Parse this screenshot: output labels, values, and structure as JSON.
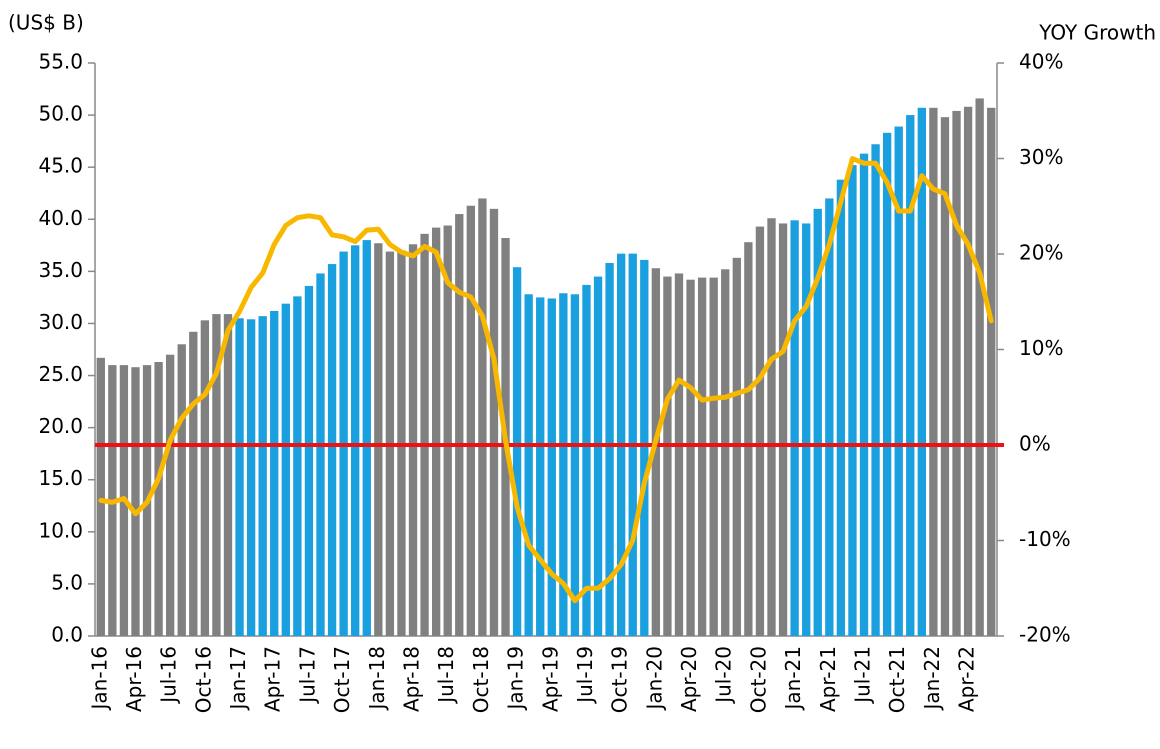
{
  "chart_data": {
    "type": "bar",
    "y_label": "(US$ B)",
    "y2_label": "YOY Growth",
    "categories": [
      "Jan-16",
      null,
      null,
      "Apr-16",
      null,
      null,
      "Jul-16",
      null,
      null,
      "Oct-16",
      null,
      null,
      "Jan-17",
      null,
      null,
      "Apr-17",
      null,
      null,
      "Jul-17",
      null,
      null,
      "Oct-17",
      null,
      null,
      "Jan-18",
      null,
      null,
      "Apr-18",
      null,
      null,
      "Jul-18",
      null,
      null,
      "Oct-18",
      null,
      null,
      "Jan-19",
      null,
      null,
      "Apr-19",
      null,
      null,
      "Jul-19",
      null,
      null,
      "Oct-19",
      null,
      null,
      "Jan-20",
      null,
      null,
      "Apr-20",
      null,
      null,
      "Jul-20",
      null,
      null,
      "Oct-20",
      null,
      null,
      "Jan-21",
      null,
      null,
      "Apr-21",
      null,
      null,
      "Jul-21",
      null,
      null,
      "Oct-21",
      null,
      null,
      "Jan-22",
      null,
      null,
      "Apr-22",
      null,
      null
    ],
    "series": [
      {
        "type": "bar",
        "colors": [
          "#808080",
          "#808080",
          "#808080",
          "#808080",
          "#808080",
          "#808080",
          "#808080",
          "#808080",
          "#808080",
          "#808080",
          "#808080",
          "#808080",
          "#1a9fdf",
          "#1a9fdf",
          "#1a9fdf",
          "#1a9fdf",
          "#1a9fdf",
          "#1a9fdf",
          "#1a9fdf",
          "#1a9fdf",
          "#1a9fdf",
          "#1a9fdf",
          "#1a9fdf",
          "#1a9fdf",
          "#808080",
          "#808080",
          "#808080",
          "#808080",
          "#808080",
          "#808080",
          "#808080",
          "#808080",
          "#808080",
          "#808080",
          "#808080",
          "#808080",
          "#1a9fdf",
          "#1a9fdf",
          "#1a9fdf",
          "#1a9fdf",
          "#1a9fdf",
          "#1a9fdf",
          "#1a9fdf",
          "#1a9fdf",
          "#1a9fdf",
          "#1a9fdf",
          "#1a9fdf",
          "#1a9fdf",
          "#808080",
          "#808080",
          "#808080",
          "#808080",
          "#808080",
          "#808080",
          "#808080",
          "#808080",
          "#808080",
          "#808080",
          "#808080",
          "#808080",
          "#1a9fdf",
          "#1a9fdf",
          "#1a9fdf",
          "#1a9fdf",
          "#1a9fdf",
          "#1a9fdf",
          "#1a9fdf",
          "#1a9fdf",
          "#1a9fdf",
          "#1a9fdf",
          "#1a9fdf",
          "#1a9fdf",
          "#808080",
          "#808080",
          "#808080",
          "#808080",
          "#808080",
          "#808080"
        ],
        "values": [
          26.7,
          26.0,
          26.0,
          25.8,
          26.0,
          26.3,
          27.0,
          28.0,
          29.2,
          30.3,
          30.9,
          30.9,
          30.5,
          30.4,
          30.7,
          31.2,
          31.9,
          32.6,
          33.6,
          34.8,
          35.7,
          36.9,
          37.5,
          38.0,
          37.7,
          36.9,
          37.0,
          37.6,
          38.6,
          39.2,
          39.4,
          40.5,
          41.3,
          42.0,
          41.0,
          38.2,
          35.4,
          32.8,
          32.5,
          32.4,
          32.9,
          32.8,
          33.7,
          34.5,
          35.8,
          36.7,
          36.7,
          36.1,
          35.3,
          34.5,
          34.8,
          34.2,
          34.4,
          34.4,
          35.2,
          36.3,
          37.8,
          39.3,
          40.1,
          39.6,
          39.9,
          39.6,
          41.0,
          42.0,
          43.8,
          45.2,
          46.3,
          47.2,
          48.3,
          48.9,
          50.0,
          50.7,
          50.7,
          49.8,
          50.4,
          50.8,
          51.6,
          50.7
        ]
      },
      {
        "type": "line",
        "axis": "y2",
        "color": "#f9b800",
        "values": [
          -5.8,
          -6.0,
          -5.6,
          -7.2,
          -6.0,
          -3.5,
          0.5,
          2.8,
          4.3,
          5.3,
          7.5,
          12.0,
          14.0,
          16.5,
          18.0,
          21.0,
          23.0,
          23.8,
          24.0,
          23.8,
          22.0,
          21.8,
          21.3,
          22.5,
          22.6,
          21.0,
          20.2,
          19.8,
          20.8,
          20.2,
          17.0,
          16.0,
          15.5,
          13.5,
          9.0,
          0.5,
          -6.5,
          -10.5,
          -12.0,
          -13.5,
          -14.5,
          -16.3,
          -15.0,
          -15.0,
          -14.0,
          -12.5,
          -10.0,
          -4.0,
          0.5,
          4.8,
          6.8,
          6.0,
          4.7,
          4.9,
          5.0,
          5.4,
          5.8,
          7.0,
          9.0,
          9.8,
          13.0,
          14.5,
          17.5,
          21.0,
          25.5,
          30.0,
          29.5,
          29.5,
          27.5,
          24.5,
          24.5,
          28.2,
          26.8,
          26.3,
          23.0,
          21.0,
          18.0,
          13.0
        ]
      }
    ],
    "reference_line": {
      "axis": "y2",
      "value": 0,
      "color": "#ee1111"
    },
    "ylim": [
      0,
      55
    ],
    "yticks": [
      {
        "value": 0,
        "label": "0.0"
      },
      {
        "value": 5,
        "label": "5.0"
      },
      {
        "value": 10,
        "label": "10.0"
      },
      {
        "value": 15,
        "label": "15.0"
      },
      {
        "value": 20,
        "label": "20.0"
      },
      {
        "value": 25,
        "label": "25.0"
      },
      {
        "value": 30,
        "label": "30.0"
      },
      {
        "value": 35,
        "label": "35.0"
      },
      {
        "value": 40,
        "label": "40.0"
      },
      {
        "value": 45,
        "label": "45.0"
      },
      {
        "value": 50,
        "label": "50.0"
      },
      {
        "value": 55,
        "label": "55.0"
      }
    ],
    "y2lim": [
      -20,
      40
    ],
    "y2ticks": [
      {
        "value": -20,
        "label": "-20%"
      },
      {
        "value": -10,
        "label": "-10%"
      },
      {
        "value": 0,
        "label": "0%"
      },
      {
        "value": 10,
        "label": "10%"
      },
      {
        "value": 20,
        "label": "20%"
      },
      {
        "value": 30,
        "label": "30%"
      },
      {
        "value": 40,
        "label": "40%"
      }
    ]
  }
}
